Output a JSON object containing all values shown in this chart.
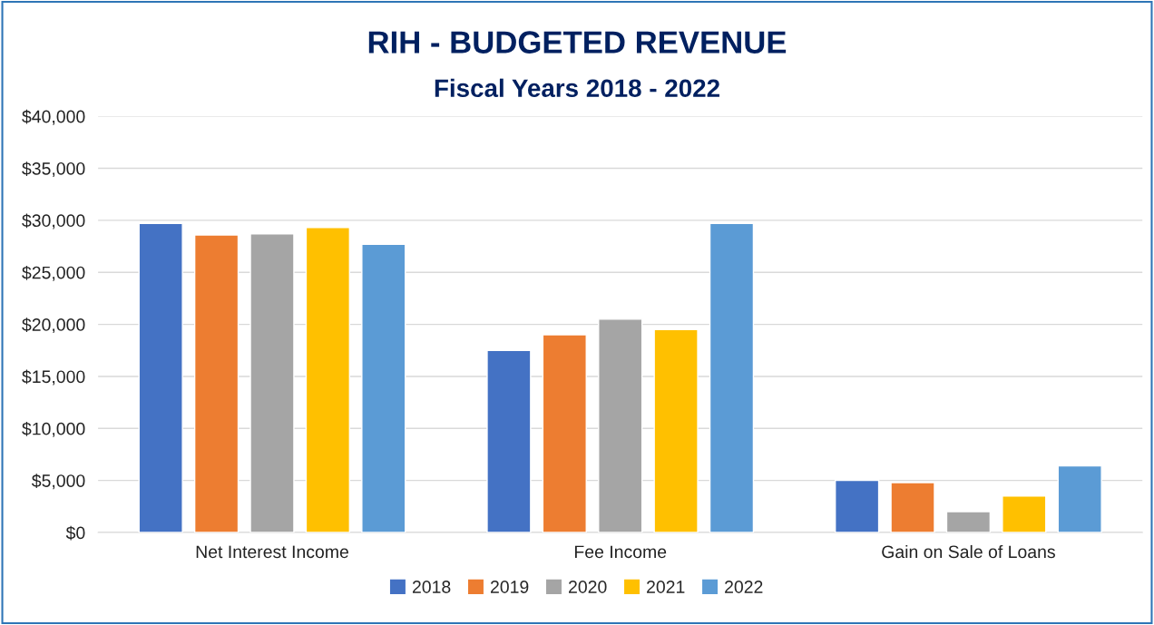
{
  "chart_data": {
    "type": "bar",
    "title": "RIH - BUDGETED REVENUE",
    "subtitle": "Fiscal Years 2018 - 2022",
    "categories": [
      "Net Interest Income",
      "Fee Income",
      "Gain on Sale of Loans"
    ],
    "series": [
      {
        "name": "2018",
        "color": "#4472c4",
        "values": [
          29700,
          17500,
          5000
        ]
      },
      {
        "name": "2019",
        "color": "#ed7d31",
        "values": [
          28600,
          19000,
          4800
        ]
      },
      {
        "name": "2020",
        "color": "#a5a5a5",
        "values": [
          28700,
          20500,
          2000
        ]
      },
      {
        "name": "2021",
        "color": "#ffc000",
        "values": [
          29300,
          19500,
          3500
        ]
      },
      {
        "name": "2022",
        "color": "#5b9bd5",
        "values": [
          27700,
          29700,
          6400
        ]
      }
    ],
    "ylim": [
      0,
      40000
    ],
    "yticks": [
      {
        "value": 0,
        "label": "$0"
      },
      {
        "value": 5000,
        "label": "$5,000"
      },
      {
        "value": 10000,
        "label": "$10,000"
      },
      {
        "value": 15000,
        "label": "$15,000"
      },
      {
        "value": 20000,
        "label": "$20,000"
      },
      {
        "value": 25000,
        "label": "$25,000"
      },
      {
        "value": 30000,
        "label": "$30,000"
      },
      {
        "value": 35000,
        "label": "$35,000"
      },
      {
        "value": 40000,
        "label": "$40,000"
      }
    ],
    "grid": "y",
    "legend": "bottom"
  }
}
